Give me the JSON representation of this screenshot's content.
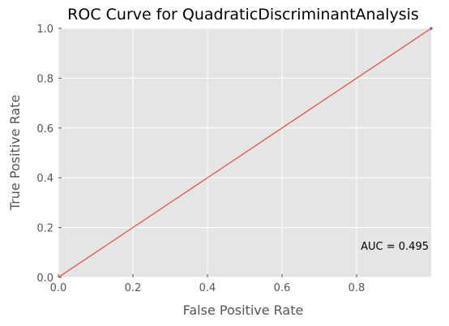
{
  "chart_data": {
    "type": "line",
    "title": "ROC Curve for QuadraticDiscriminantAnalysis",
    "xlabel": "False Positive Rate",
    "ylabel": "True Positive Rate",
    "xlim": [
      0.0,
      1.0
    ],
    "ylim": [
      0.0,
      1.0
    ],
    "xticks": [
      "0.0",
      "0.2",
      "0.4",
      "0.6",
      "0.8"
    ],
    "yticks": [
      "0.0",
      "0.2",
      "0.4",
      "0.6",
      "0.8",
      "1.0"
    ],
    "grid": true,
    "series": [
      {
        "x": [
          0.0,
          1.0
        ],
        "y": [
          0.0,
          1.0
        ],
        "color": "#E24A33"
      }
    ],
    "annotation": "AUC = 0.495",
    "colors": {
      "plot_background": "#E5E5E5",
      "grid": "#FFFFFF",
      "line": "#E24A33"
    }
  }
}
